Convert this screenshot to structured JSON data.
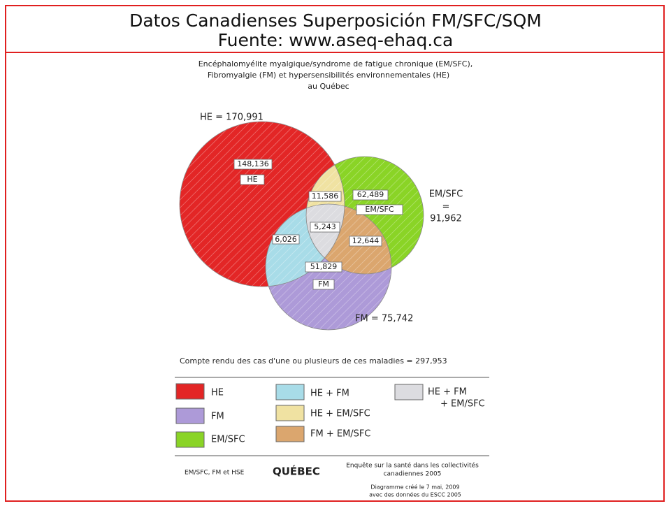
{
  "header": {
    "title": "Datos Canadienses Superposición FM/SFC/SQM",
    "source": "Fuente: www.aseq-ehaq.ca"
  },
  "diagram": {
    "title": [
      "Encéphalomyélite myalgique/syndrome de fatigue chronique (EM/SFC),",
      "Fibromyalgie (FM) et hypersensibilités environnementales (HE)",
      "au Québec"
    ],
    "sets": {
      "he_total": "HE = 170,991",
      "em_total": [
        "EM/SFC",
        "=",
        "91,962"
      ],
      "fm_total": "FM = 75,742"
    },
    "regions": {
      "he": {
        "value": "148,136",
        "label": "HE"
      },
      "em": {
        "value": "62,489",
        "label": "EM/SFC"
      },
      "fm": {
        "value": "51,829",
        "label": "FM"
      },
      "he_em": "11,586",
      "he_fm": "6,026",
      "fm_em": "12,644",
      "all": "5,243"
    },
    "total": "Compte rendu des cas d'une ou plusieurs de ces maladies = 297,953"
  },
  "legend": [
    [
      "HE"
    ],
    [
      "FM"
    ],
    [
      "EM/SFC"
    ],
    [
      "HE + FM"
    ],
    [
      "HE + EM/SFC"
    ],
    [
      "FM + EM/SFC"
    ],
    [
      "HE + FM",
      "+ EM/SFC"
    ]
  ],
  "footer": {
    "left": "EM/SFC, FM et HSE",
    "logo": "QUÉBEC",
    "survey": [
      "Enquête sur la santé dans les collectivités",
      "canadiennes 2005"
    ],
    "credit": [
      "Diagramme créé le 7 mai, 2009",
      "avec des données du ESCC 2005"
    ]
  }
}
